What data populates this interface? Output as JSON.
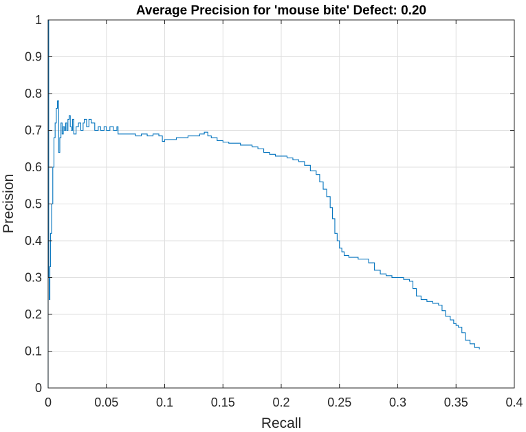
{
  "chart_data": {
    "type": "line",
    "title": "Average Precision for 'mouse bite' Defect: 0.20",
    "xlabel": "Recall",
    "ylabel": "Precision",
    "xlim": [
      0,
      0.4
    ],
    "ylim": [
      0,
      1
    ],
    "xticks": [
      0,
      0.05,
      0.1,
      0.15,
      0.2,
      0.25,
      0.3,
      0.35,
      0.4
    ],
    "yticks": [
      0,
      0.1,
      0.2,
      0.3,
      0.4,
      0.5,
      0.6,
      0.7,
      0.8,
      0.9,
      1
    ],
    "xtick_labels": [
      "0",
      "0.05",
      "0.1",
      "0.15",
      "0.2",
      "0.25",
      "0.3",
      "0.35",
      "0.4"
    ],
    "ytick_labels": [
      "0",
      "0.1",
      "0.2",
      "0.3",
      "0.4",
      "0.5",
      "0.6",
      "0.7",
      "0.8",
      "0.9",
      "1"
    ],
    "grid": true,
    "line_color": "#0072BD",
    "series": [
      {
        "x": [
          0,
          0,
          0.0005,
          0.001,
          0.0015,
          0.002,
          0.003,
          0.004,
          0.005,
          0.006,
          0.007,
          0.008,
          0.009,
          0.01,
          0.011,
          0.012,
          0.013,
          0.014,
          0.015,
          0.016,
          0.017,
          0.018,
          0.019,
          0.02,
          0.021,
          0.022,
          0.024,
          0.026,
          0.028,
          0.03,
          0.031,
          0.033,
          0.035,
          0.037,
          0.04,
          0.043,
          0.045,
          0.048,
          0.05,
          0.053,
          0.056,
          0.059,
          0.06,
          0.065,
          0.07,
          0.075,
          0.08,
          0.085,
          0.09,
          0.095,
          0.098,
          0.1,
          0.105,
          0.11,
          0.115,
          0.12,
          0.125,
          0.13,
          0.134,
          0.137,
          0.14,
          0.145,
          0.15,
          0.155,
          0.16,
          0.165,
          0.17,
          0.175,
          0.18,
          0.185,
          0.19,
          0.195,
          0.2,
          0.205,
          0.21,
          0.215,
          0.22,
          0.225,
          0.23,
          0.233,
          0.236,
          0.239,
          0.242,
          0.244,
          0.246,
          0.248,
          0.25,
          0.252,
          0.254,
          0.256,
          0.258,
          0.262,
          0.266,
          0.27,
          0.275,
          0.28,
          0.285,
          0.29,
          0.295,
          0.3,
          0.305,
          0.31,
          0.313,
          0.316,
          0.32,
          0.325,
          0.33,
          0.335,
          0.338,
          0.341,
          0.345,
          0.348,
          0.35,
          0.352,
          0.355,
          0.358,
          0.362,
          0.366,
          0.37
        ],
        "y": [
          0,
          1.0,
          0.3,
          0.24,
          0.33,
          0.42,
          0.5,
          0.6,
          0.68,
          0.72,
          0.76,
          0.78,
          0.64,
          0.68,
          0.72,
          0.69,
          0.71,
          0.7,
          0.72,
          0.7,
          0.73,
          0.74,
          0.71,
          0.7,
          0.73,
          0.69,
          0.71,
          0.72,
          0.7,
          0.72,
          0.73,
          0.71,
          0.73,
          0.72,
          0.7,
          0.71,
          0.7,
          0.71,
          0.7,
          0.71,
          0.7,
          0.71,
          0.69,
          0.69,
          0.69,
          0.685,
          0.69,
          0.685,
          0.69,
          0.685,
          0.67,
          0.675,
          0.675,
          0.68,
          0.68,
          0.685,
          0.685,
          0.69,
          0.695,
          0.685,
          0.68,
          0.672,
          0.668,
          0.665,
          0.665,
          0.66,
          0.66,
          0.655,
          0.65,
          0.64,
          0.635,
          0.63,
          0.63,
          0.625,
          0.62,
          0.615,
          0.605,
          0.59,
          0.58,
          0.56,
          0.54,
          0.52,
          0.49,
          0.46,
          0.42,
          0.4,
          0.38,
          0.37,
          0.36,
          0.36,
          0.355,
          0.355,
          0.35,
          0.35,
          0.34,
          0.32,
          0.31,
          0.305,
          0.3,
          0.3,
          0.295,
          0.29,
          0.27,
          0.25,
          0.24,
          0.235,
          0.23,
          0.225,
          0.21,
          0.195,
          0.185,
          0.175,
          0.17,
          0.165,
          0.15,
          0.13,
          0.12,
          0.11,
          0.105
        ]
      }
    ]
  }
}
